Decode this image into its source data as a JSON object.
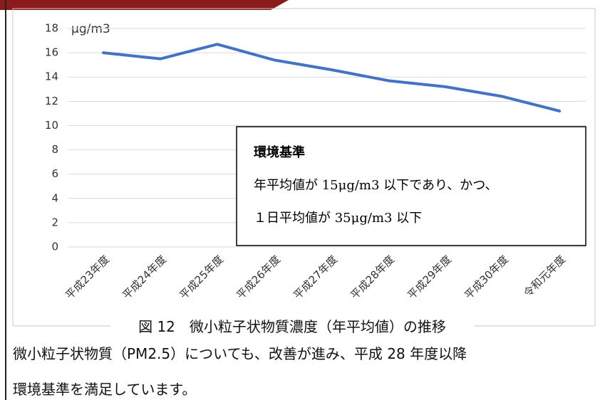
{
  "chart_data": {
    "type": "line",
    "y_unit": "μg/m3",
    "categories": [
      "平成23年度",
      "平成24年度",
      "平成25年度",
      "平成26年度",
      "平成27年度",
      "平成28年度",
      "平成29年度",
      "平成30年度",
      "令和元年度"
    ],
    "series": [
      {
        "name": "PM2.5",
        "color": "#4472c4",
        "values": [
          16.0,
          15.5,
          16.7,
          15.4,
          14.6,
          13.7,
          13.2,
          12.4,
          11.2
        ]
      }
    ],
    "ylim": [
      0,
      18
    ],
    "yticks": [
      0,
      2,
      4,
      6,
      8,
      10,
      12,
      14,
      16,
      18
    ],
    "grid": true,
    "annotation": {
      "title": "環境基準",
      "lines": [
        "年平均値が 15μg/m3 以下であり、かつ、",
        "１日平均値が 35μg/m3 以下"
      ]
    }
  },
  "caption": "図 12　微小粒子状物質濃度（年平均値）の推移",
  "body": [
    "微小粒子状物質（PM2.5）についても、改善が進み、平成 28 年度以降",
    "環境基準を満足しています。"
  ]
}
